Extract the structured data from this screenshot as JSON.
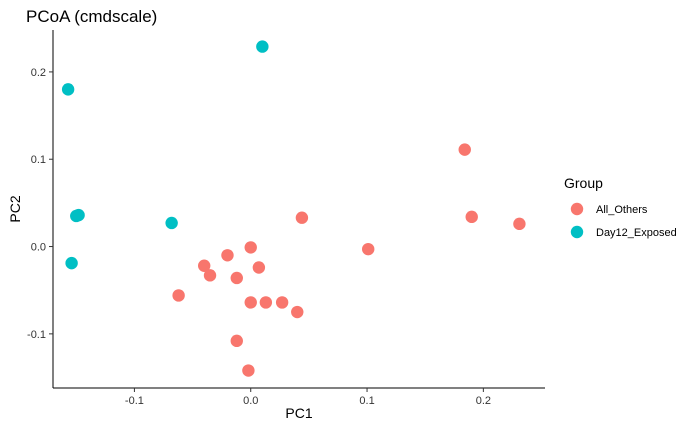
{
  "chart_data": {
    "type": "scatter",
    "title": "PCoA (cmdscale)",
    "xlabel": "PC1",
    "ylabel": "PC2",
    "xlim": [
      -0.17,
      0.253
    ],
    "ylim": [
      -0.162,
      0.248
    ],
    "xticks": [
      -0.1,
      0.0,
      0.1,
      0.2
    ],
    "yticks": [
      -0.1,
      0.0,
      0.1,
      0.2
    ],
    "xtick_labels": [
      "-0.1",
      "0.0",
      "0.1",
      "0.2"
    ],
    "ytick_labels": [
      "-0.1",
      "0.0",
      "0.1",
      "0.2"
    ],
    "grid": false,
    "legend": {
      "title": "Group",
      "position": "right"
    },
    "series": [
      {
        "name": "All_Others",
        "color": "#F8766D",
        "points": [
          [
            0.184,
            0.111
          ],
          [
            0.044,
            0.033
          ],
          [
            0.19,
            0.034
          ],
          [
            0.231,
            0.026
          ],
          [
            0.101,
            -0.003
          ],
          [
            0.0,
            -0.001
          ],
          [
            -0.02,
            -0.01
          ],
          [
            -0.04,
            -0.022
          ],
          [
            0.007,
            -0.024
          ],
          [
            -0.035,
            -0.033
          ],
          [
            -0.012,
            -0.036
          ],
          [
            -0.062,
            -0.056
          ],
          [
            0.0,
            -0.064
          ],
          [
            0.013,
            -0.064
          ],
          [
            0.027,
            -0.064
          ],
          [
            0.04,
            -0.075
          ],
          [
            -0.012,
            -0.108
          ],
          [
            -0.002,
            -0.142
          ]
        ]
      },
      {
        "name": "Day12_Exposed",
        "color": "#00BFC4",
        "points": [
          [
            0.01,
            0.229
          ],
          [
            -0.157,
            0.18
          ],
          [
            -0.15,
            0.035
          ],
          [
            -0.148,
            0.036
          ],
          [
            -0.068,
            0.027
          ],
          [
            -0.154,
            -0.019
          ]
        ]
      }
    ]
  }
}
